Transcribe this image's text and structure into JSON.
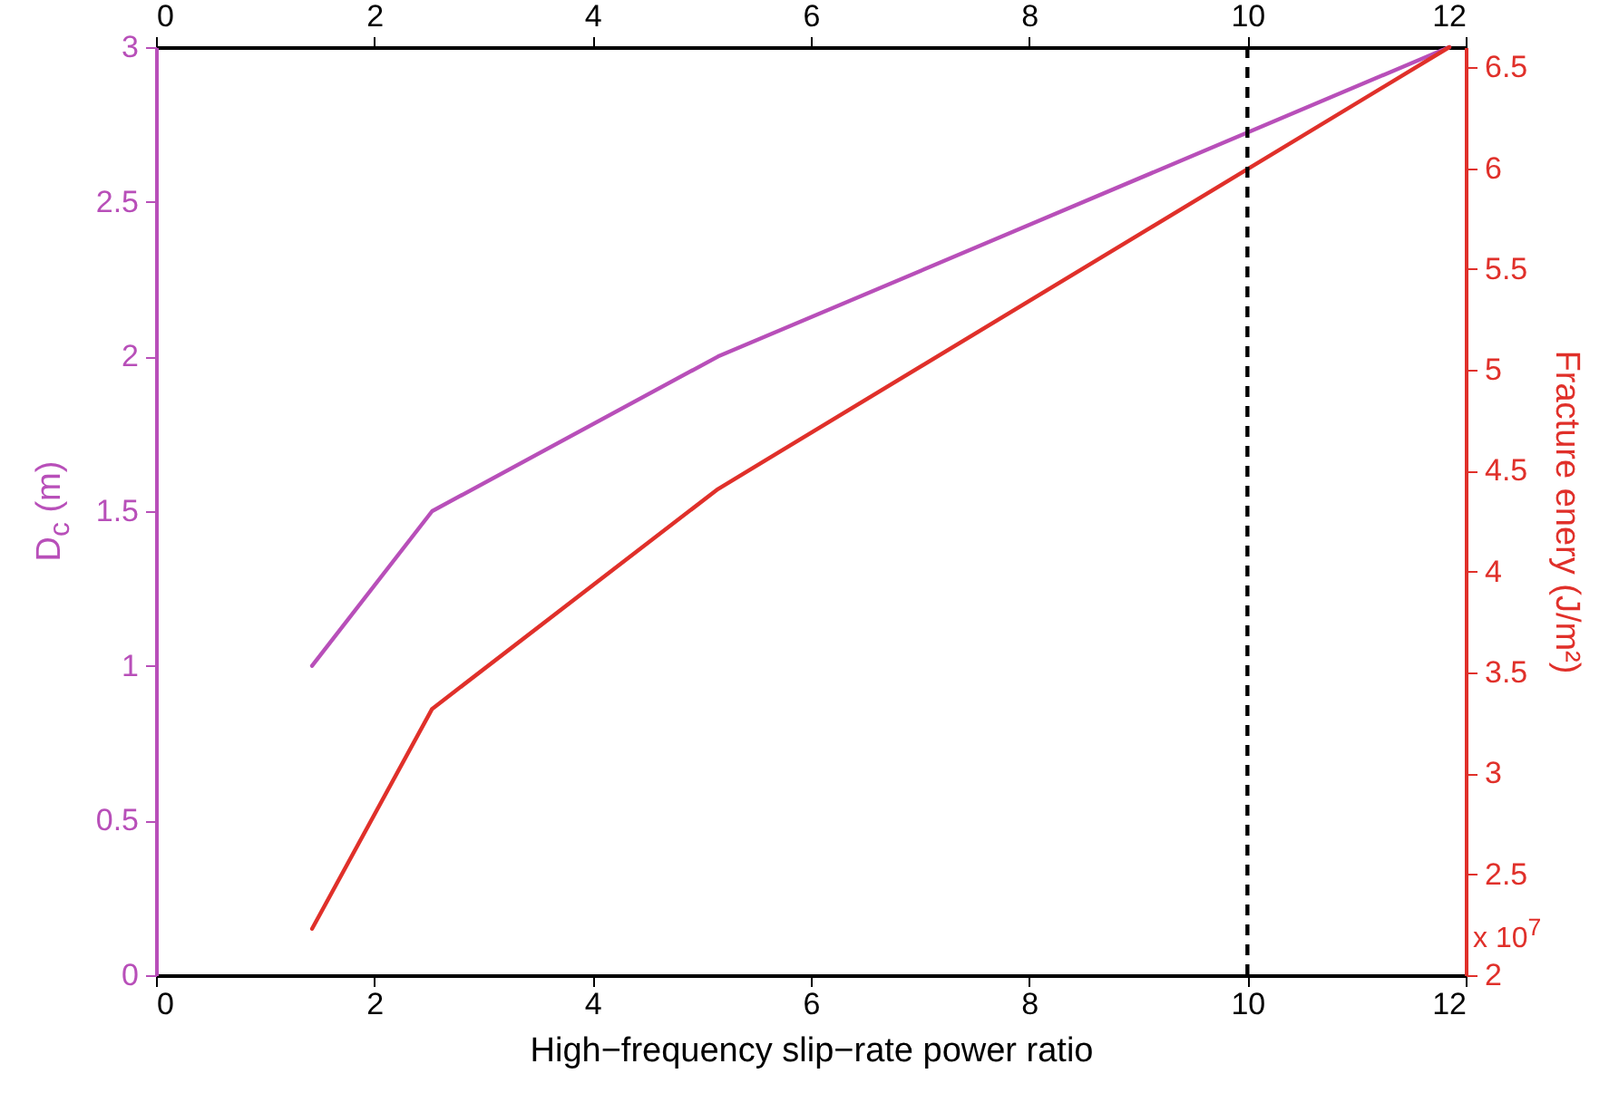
{
  "chart_data": {
    "type": "line",
    "xlabel": "High−frequency slip−rate power ratio",
    "ylabel": "D$_{c}$ (m)",
    "y2label": "Fracture enery (J/m²)",
    "x": [
      1.43,
      2.53,
      5.15,
      11.85
    ],
    "series": [
      {
        "color": "#b84fb9",
        "values": [
          1.0,
          1.5,
          2.0,
          3.0
        ]
      },
      {
        "color": "#e0302a",
        "values": [
          2.23,
          3.32,
          4.41,
          6.6
        ],
        "axis": "y2"
      }
    ],
    "xlim": [
      0,
      12
    ],
    "xticks": [
      0,
      2,
      4,
      6,
      8,
      10,
      12
    ],
    "x2lim": [
      0,
      12
    ],
    "x2ticks": [
      0,
      2,
      4,
      6,
      8,
      10,
      12
    ],
    "ylim": [
      0,
      3
    ],
    "yticks": [
      0,
      0.5,
      1,
      1.5,
      2,
      2.5,
      3
    ],
    "y2lim": [
      2,
      6.6
    ],
    "y2ticks": [
      2,
      2.5,
      3,
      3.5,
      4,
      4.5,
      5,
      5.5,
      6,
      6.5
    ],
    "ref_lines": [
      {
        "axis": "x",
        "value": 10,
        "color": "#000000",
        "line_style": "dashed"
      }
    ],
    "annotations": [
      "x 10$^{7}$"
    ],
    "grid": false,
    "line_style": "solid",
    "marker": "none"
  }
}
